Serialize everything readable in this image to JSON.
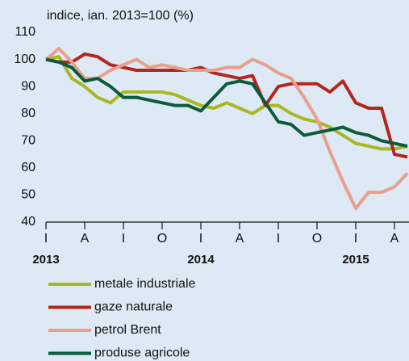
{
  "chart_data": {
    "type": "line",
    "title": "indice, ian. 2013=100 (%)",
    "categories": [
      "I",
      null,
      null,
      "A",
      null,
      null,
      "I",
      null,
      null,
      "O",
      null,
      null,
      "I",
      null,
      null,
      "A",
      null,
      null,
      "I",
      null,
      null,
      "O",
      null,
      null,
      "I",
      null,
      null,
      "A",
      null
    ],
    "years": [
      "2013",
      "2014",
      "2015"
    ],
    "ylim": [
      40,
      110
    ],
    "yticks": [
      40,
      50,
      60,
      70,
      80,
      90,
      100,
      110
    ],
    "series": [
      {
        "name": "metale industriale",
        "color": "#a9b724",
        "values": [
          100,
          101,
          93,
          90,
          86,
          84,
          88,
          88,
          88,
          88,
          87,
          85,
          83,
          82,
          84,
          82,
          80,
          83,
          83,
          80,
          78,
          77,
          75,
          72,
          69,
          68,
          67,
          67,
          68
        ]
      },
      {
        "name": "gaze naturale",
        "color": "#b3261e",
        "values": [
          100,
          99,
          99,
          102,
          101,
          98,
          97,
          96,
          96,
          96,
          96,
          96,
          97,
          95,
          94,
          93,
          94,
          83,
          90,
          91,
          91,
          91,
          88,
          92,
          84,
          82,
          82,
          65,
          64
        ]
      },
      {
        "name": "petrol Brent",
        "color": "#e8a08e",
        "values": [
          100,
          104,
          99,
          93,
          93,
          96,
          98,
          100,
          97,
          98,
          97,
          96,
          96,
          96,
          97,
          97,
          100,
          98,
          95,
          93,
          86,
          78,
          66,
          55,
          45,
          51,
          51,
          53,
          58
        ]
      },
      {
        "name": "produse agricole",
        "color": "#0d5a3b",
        "values": [
          100,
          99,
          97,
          92,
          93,
          90,
          86,
          86,
          85,
          84,
          83,
          83,
          81,
          86,
          91,
          92,
          91,
          84,
          77,
          76,
          72,
          73,
          74,
          75,
          73,
          72,
          70,
          69,
          68
        ]
      }
    ]
  }
}
